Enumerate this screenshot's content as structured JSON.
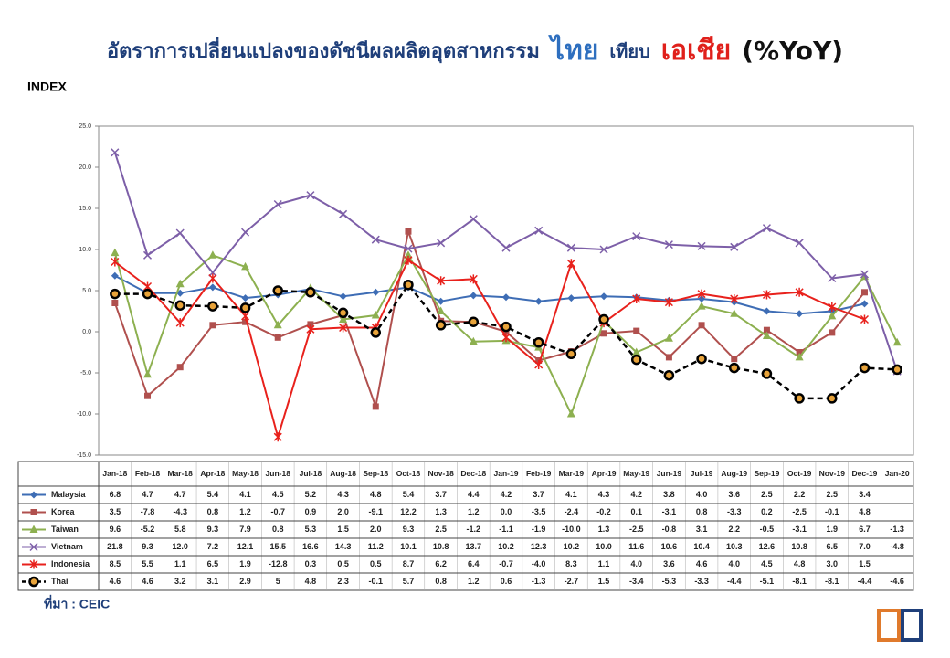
{
  "chart_data": {
    "type": "line",
    "title": [
      {
        "text": "อัตราการเปลี่ยนแปลงของดัชนีผลผลิตอุตสาหกรรม",
        "color": "#1f3f7a",
        "size": 22
      },
      {
        "text": "ไทย",
        "color": "#2e6fbf",
        "size": 30
      },
      {
        "text": "เทียบ",
        "color": "#1f3f7a",
        "size": 20
      },
      {
        "text": "เอเชีย",
        "color": "#e0201b",
        "size": 30
      },
      {
        "text": "(%YoY)",
        "color": "#111111",
        "size": 28
      }
    ],
    "y_label": "INDEX",
    "source": "ที่มา : CEIC",
    "grid": false,
    "categories": [
      "Jan-18",
      "Feb-18",
      "Mar-18",
      "Apr-18",
      "May-18",
      "Jun-18",
      "Jul-18",
      "Aug-18",
      "Sep-18",
      "Oct-18",
      "Nov-18",
      "Dec-18",
      "Jan-19",
      "Feb-19",
      "Mar-19",
      "Apr-19",
      "May-19",
      "Jun-19",
      "Jul-19",
      "Aug-19",
      "Sep-19",
      "Oct-19",
      "Nov-19",
      "Dec-19",
      "Jan-20"
    ],
    "ylim": [
      -15,
      25
    ],
    "yticks": [
      {
        "value": -15,
        "label": "-15.0"
      },
      {
        "value": -10,
        "label": "-10.0"
      },
      {
        "value": -5,
        "label": "-5.0"
      },
      {
        "value": 0,
        "label": "0.0"
      },
      {
        "value": 5,
        "label": "5.0"
      },
      {
        "value": 10,
        "label": "10.0"
      },
      {
        "value": 15,
        "label": "15.0"
      },
      {
        "value": 20,
        "label": "20.0"
      },
      {
        "value": 25,
        "label": "25.0"
      }
    ],
    "series": [
      {
        "name": "Malaysia",
        "color": "#3e6db5",
        "marker": "diamond",
        "dashed": false,
        "values": [
          6.8,
          4.7,
          4.7,
          5.4,
          4.1,
          4.5,
          5.2,
          4.3,
          4.8,
          5.4,
          3.7,
          4.4,
          4.2,
          3.7,
          4.1,
          4.3,
          4.2,
          3.8,
          4.0,
          3.6,
          2.5,
          2.2,
          2.5,
          3.4,
          null
        ],
        "value_labels": [
          "6.8",
          "4.7",
          "4.7",
          "5.4",
          "4.1",
          "4.5",
          "5.2",
          "4.3",
          "4.8",
          "5.4",
          "3.7",
          "4.4",
          "4.2",
          "3.7",
          "4.1",
          "4.3",
          "4.2",
          "3.8",
          "4.0",
          "3.6",
          "2.5",
          "2.2",
          "2.5",
          "3.4",
          null
        ]
      },
      {
        "name": "Korea",
        "color": "#b0504e",
        "marker": "square",
        "dashed": false,
        "values": [
          3.5,
          -7.8,
          -4.3,
          0.8,
          1.2,
          -0.7,
          0.9,
          2.0,
          -9.1,
          12.2,
          1.3,
          1.2,
          0.0,
          -3.5,
          -2.4,
          -0.2,
          0.1,
          -3.1,
          0.8,
          -3.3,
          0.2,
          -2.5,
          -0.1,
          4.8,
          null
        ],
        "value_labels": [
          "3.5",
          "-7.8",
          "-4.3",
          "0.8",
          "1.2",
          "-0.7",
          "0.9",
          "2.0",
          "-9.1",
          "12.2",
          "1.3",
          "1.2",
          "0.0",
          "-3.5",
          "-2.4",
          "-0.2",
          "0.1",
          "-3.1",
          "0.8",
          "-3.3",
          "0.2",
          "-2.5",
          "-0.1",
          "4.8",
          null
        ]
      },
      {
        "name": "Taiwan",
        "color": "#8db050",
        "marker": "triangle",
        "dashed": false,
        "values": [
          9.6,
          -5.2,
          5.8,
          9.3,
          7.9,
          0.8,
          5.3,
          1.5,
          2.0,
          9.3,
          2.5,
          -1.2,
          -1.1,
          -1.9,
          -10.0,
          1.3,
          -2.5,
          -0.8,
          3.1,
          2.2,
          -0.5,
          -3.1,
          1.9,
          6.7,
          -1.3
        ],
        "value_labels": [
          "9.6",
          "-5.2",
          "5.8",
          "9.3",
          "7.9",
          "0.8",
          "5.3",
          "1.5",
          "2.0",
          "9.3",
          "2.5",
          "-1.2",
          "-1.1",
          "-1.9",
          "-10.0",
          "1.3",
          "-2.5",
          "-0.8",
          "3.1",
          "2.2",
          "-0.5",
          "-3.1",
          "1.9",
          "6.7",
          "-1.3"
        ]
      },
      {
        "name": "Vietnam",
        "color": "#7d5fa8",
        "marker": "cross",
        "dashed": false,
        "values": [
          21.8,
          9.3,
          12.0,
          7.2,
          12.1,
          15.5,
          16.6,
          14.3,
          11.2,
          10.1,
          10.8,
          13.7,
          10.2,
          12.3,
          10.2,
          10.0,
          11.6,
          10.6,
          10.4,
          10.3,
          12.6,
          10.8,
          6.5,
          7.0,
          -4.8
        ],
        "value_labels": [
          "21.8",
          "9.3",
          "12.0",
          "7.2",
          "12.1",
          "15.5",
          "16.6",
          "14.3",
          "11.2",
          "10.1",
          "10.8",
          "13.7",
          "10.2",
          "12.3",
          "10.2",
          "10.0",
          "11.6",
          "10.6",
          "10.4",
          "10.3",
          "12.6",
          "10.8",
          "6.5",
          "7.0",
          "-4.8"
        ]
      },
      {
        "name": "Indonesia",
        "color": "#e8211c",
        "marker": "star",
        "dashed": false,
        "values": [
          8.5,
          5.5,
          1.1,
          6.5,
          1.9,
          -12.8,
          0.3,
          0.5,
          0.5,
          8.7,
          6.2,
          6.4,
          -0.7,
          -4.0,
          8.3,
          1.1,
          4.0,
          3.6,
          4.6,
          4.0,
          4.5,
          4.8,
          3.0,
          1.5,
          null
        ],
        "value_labels": [
          "8.5",
          "5.5",
          "1.1",
          "6.5",
          "1.9",
          "-12.8",
          "0.3",
          "0.5",
          "0.5",
          "8.7",
          "6.2",
          "6.4",
          "-0.7",
          "-4.0",
          "8.3",
          "1.1",
          "4.0",
          "3.6",
          "4.6",
          "4.0",
          "4.5",
          "4.8",
          "3.0",
          "1.5",
          null
        ]
      },
      {
        "name": "Thai",
        "color": "#000000",
        "marker": "circle",
        "dashed": true,
        "values": [
          4.6,
          4.6,
          3.2,
          3.1,
          2.9,
          5,
          4.8,
          2.3,
          -0.1,
          5.7,
          0.8,
          1.2,
          0.6,
          -1.3,
          -2.7,
          1.5,
          -3.4,
          -5.3,
          -3.3,
          -4.4,
          -5.1,
          -8.1,
          -8.1,
          -4.4,
          -4.6
        ],
        "value_labels": [
          "4.6",
          "4.6",
          "3.2",
          "3.1",
          "2.9",
          "5",
          "4.8",
          "2.3",
          "-0.1",
          "5.7",
          "0.8",
          "1.2",
          "0.6",
          "-1.3",
          "-2.7",
          "1.5",
          "-3.4",
          "-5.3",
          "-3.3",
          "-4.4",
          "-5.1",
          "-8.1",
          "-8.1",
          "-4.4",
          "-4.6"
        ]
      }
    ]
  }
}
